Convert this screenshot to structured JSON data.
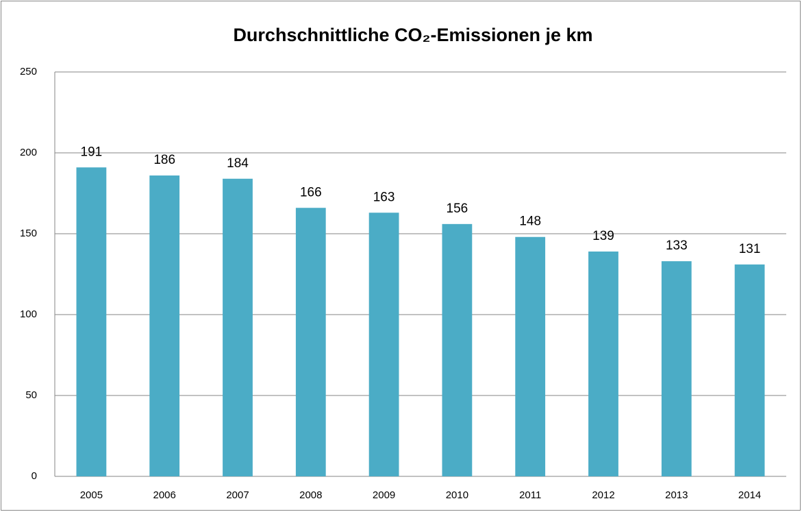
{
  "chart_data": {
    "type": "bar",
    "title": "Durchschnittliche CO₂-Emissionen je km",
    "categories": [
      "2005",
      "2006",
      "2007",
      "2008",
      "2009",
      "2010",
      "2011",
      "2012",
      "2013",
      "2014"
    ],
    "values": [
      191,
      186,
      184,
      166,
      163,
      156,
      148,
      139,
      133,
      131
    ],
    "color": "#4bacc6",
    "ylim": [
      0,
      250
    ],
    "yticks": [
      0,
      50,
      100,
      150,
      200,
      250
    ],
    "grid": true
  }
}
